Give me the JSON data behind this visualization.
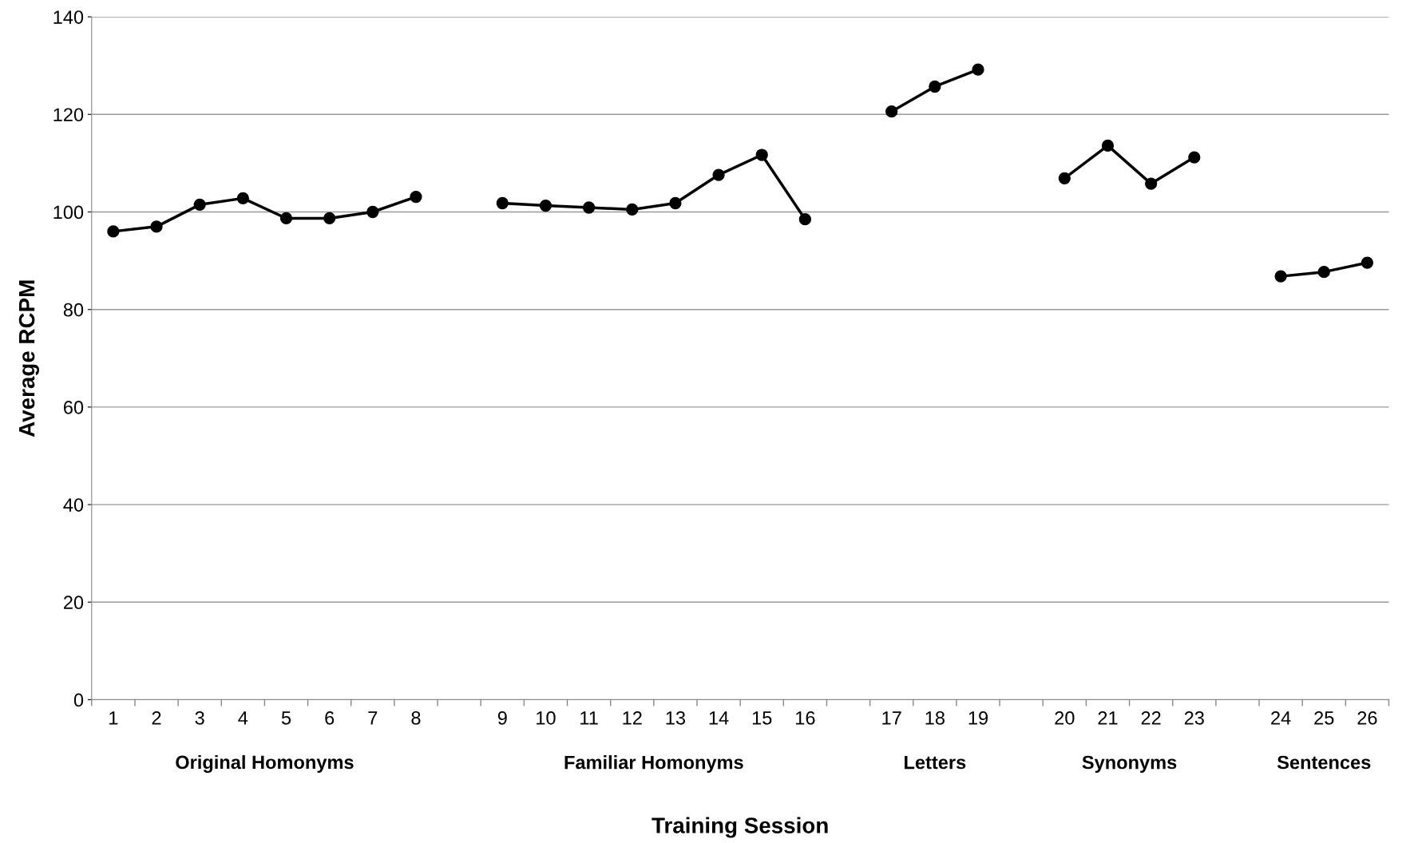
{
  "chart_data": {
    "type": "line",
    "xlabel": "Training Session",
    "ylabel": "Average RCPM",
    "categories": [
      "1",
      "2",
      "3",
      "4",
      "5",
      "6",
      "7",
      "8",
      null,
      "9",
      "10",
      "11",
      "12",
      "13",
      "14",
      "15",
      "16",
      null,
      "17",
      "18",
      "19",
      null,
      "20",
      "21",
      "22",
      "23",
      null,
      "24",
      "25",
      "26"
    ],
    "series": [
      {
        "color": "#000000",
        "values": [
          96,
          97,
          101.5,
          102.8,
          98.7,
          98.7,
          100,
          103.1,
          null,
          101.8,
          101.3,
          100.9,
          100.5,
          101.8,
          107.6,
          111.7,
          98.5,
          null,
          120.6,
          125.7,
          129.2,
          null,
          106.9,
          113.6,
          105.8,
          111.2,
          null,
          86.8,
          87.7,
          89.6
        ]
      }
    ],
    "ylim": [
      0,
      140
    ],
    "yticks": [
      0,
      20,
      40,
      60,
      80,
      100,
      120,
      140
    ],
    "grid": "y",
    "marker": "circle",
    "line_style": "solid",
    "legend": false,
    "annotations": [
      "Original Homonyms",
      "Familiar Homonyms",
      "Letters",
      "Synonyms",
      "Sentences"
    ]
  }
}
